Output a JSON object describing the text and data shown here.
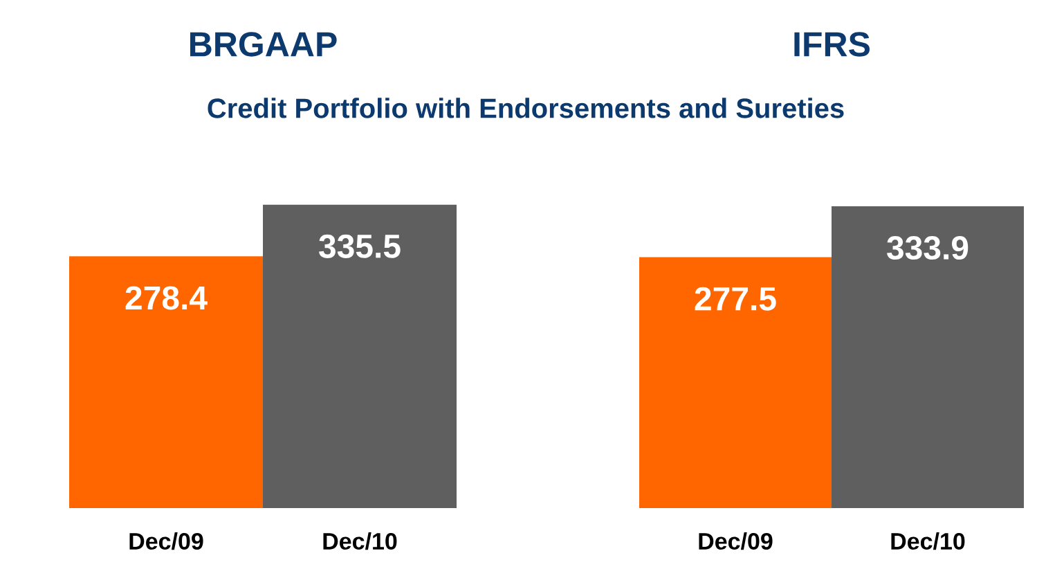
{
  "chart_data": [
    {
      "type": "bar",
      "title": "BRGAAP",
      "subtitle": "Credit Portfolio with Endorsements and Sureties",
      "categories": [
        "Dec/09",
        "Dec/10"
      ],
      "values": [
        278.4,
        335.5
      ],
      "colors": [
        "#ff6600",
        "#5f5f5f"
      ],
      "data_labels": true
    },
    {
      "type": "bar",
      "title": "IFRS",
      "categories": [
        "Dec/09",
        "Dec/10"
      ],
      "values": [
        277.5,
        333.9
      ],
      "colors": [
        "#ff6600",
        "#5f5f5f"
      ],
      "data_labels": true
    }
  ]
}
